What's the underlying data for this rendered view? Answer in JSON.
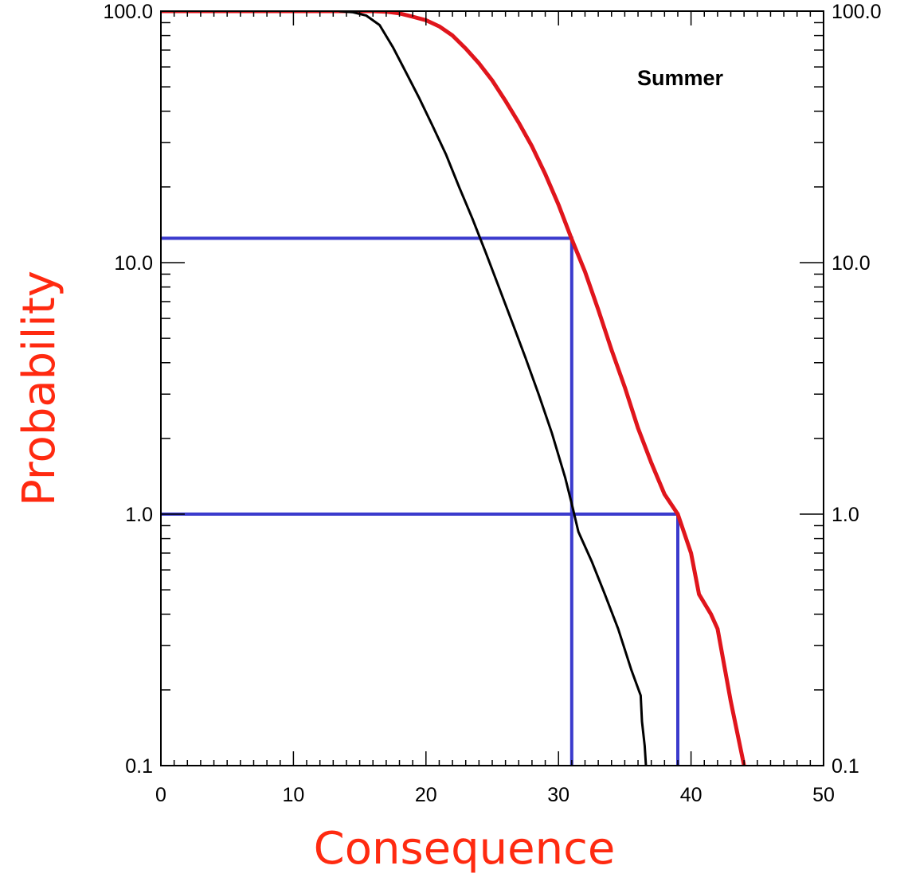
{
  "chart_data": {
    "type": "line",
    "annotation": "Summer",
    "xlabel": "Consequence",
    "ylabel": "Probability",
    "xlim": [
      0,
      50
    ],
    "ylim": [
      0.1,
      100
    ],
    "y_scale": "log",
    "grid": false,
    "right_axis_labels": true,
    "x_ticks": [
      0,
      10,
      20,
      30,
      40,
      50
    ],
    "x_tick_labels": [
      "0",
      "10",
      "20",
      "30",
      "40",
      "50"
    ],
    "y_ticks": [
      0.1,
      1,
      10,
      100
    ],
    "y_tick_labels": [
      "0.1",
      "1.0",
      "10.0",
      "100.0"
    ],
    "label_color": "#ff2a10",
    "series": [
      {
        "color": "#e0151c",
        "points": [
          [
            0,
            100
          ],
          [
            14,
            100
          ],
          [
            16,
            100
          ],
          [
            17,
            99.5
          ],
          [
            18,
            98
          ],
          [
            19,
            95
          ],
          [
            20,
            92
          ],
          [
            21,
            87
          ],
          [
            22,
            80
          ],
          [
            23,
            71
          ],
          [
            24,
            62
          ],
          [
            25,
            53
          ],
          [
            26,
            44
          ],
          [
            27,
            36
          ],
          [
            28,
            29
          ],
          [
            29,
            22.5
          ],
          [
            30,
            17
          ],
          [
            31,
            12.4
          ],
          [
            32,
            9.2
          ],
          [
            33,
            6.5
          ],
          [
            34,
            4.5
          ],
          [
            35,
            3.2
          ],
          [
            36,
            2.2
          ],
          [
            37,
            1.6
          ],
          [
            38,
            1.2
          ],
          [
            39,
            1.0
          ],
          [
            40,
            0.7
          ],
          [
            40.6,
            0.48
          ],
          [
            41.5,
            0.4
          ],
          [
            42,
            0.35
          ],
          [
            43,
            0.18
          ],
          [
            44,
            0.1
          ]
        ]
      },
      {
        "color": "#000000",
        "points": [
          [
            13.5,
            100
          ],
          [
            14.5,
            99
          ],
          [
            15.5,
            96
          ],
          [
            16.5,
            88
          ],
          [
            17.5,
            72
          ],
          [
            18.5,
            57
          ],
          [
            19.5,
            45
          ],
          [
            20.5,
            35
          ],
          [
            21.5,
            27
          ],
          [
            22.5,
            20
          ],
          [
            23.5,
            15
          ],
          [
            24.5,
            11
          ],
          [
            25.5,
            8
          ],
          [
            26.5,
            5.8
          ],
          [
            27.5,
            4.2
          ],
          [
            28.5,
            3.0
          ],
          [
            29.5,
            2.1
          ],
          [
            30.5,
            1.4
          ],
          [
            31,
            1.1
          ],
          [
            31.5,
            0.85
          ],
          [
            32.5,
            0.65
          ],
          [
            33.5,
            0.48
          ],
          [
            34.5,
            0.35
          ],
          [
            35.5,
            0.24
          ],
          [
            36.2,
            0.19
          ],
          [
            36.3,
            0.15
          ],
          [
            36.5,
            0.12
          ],
          [
            36.6,
            0.1
          ]
        ]
      }
    ],
    "reference_lines": [
      {
        "color": "#3a3acd",
        "points": [
          [
            0,
            12.5
          ],
          [
            31,
            12.5
          ],
          [
            31,
            0.1
          ]
        ]
      },
      {
        "color": "#3a3acd",
        "points": [
          [
            0,
            1.0
          ],
          [
            39,
            1.0
          ],
          [
            39,
            0.1
          ]
        ]
      }
    ]
  }
}
